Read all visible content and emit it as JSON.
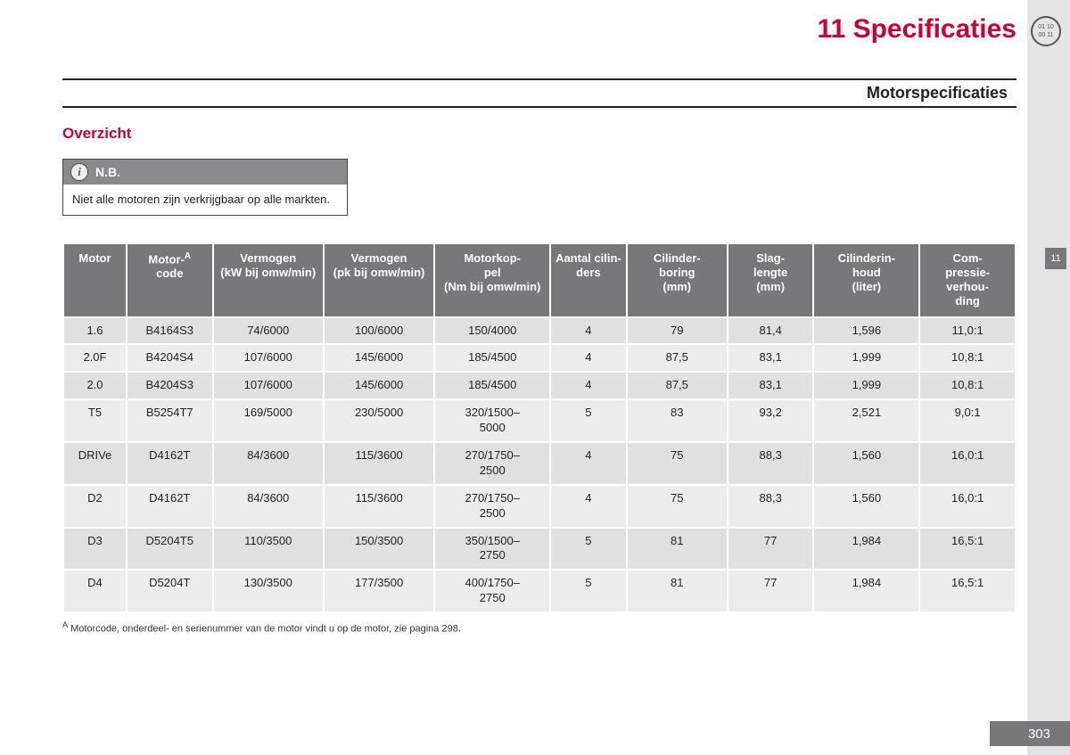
{
  "header": {
    "chapter_title": "11 Specificaties",
    "section_title": "Motorspecificaties",
    "icon_text": "01 10\n00 11",
    "side_tab": "11",
    "page_number": "303"
  },
  "content": {
    "heading": "Overzicht",
    "note": {
      "label": "N.B.",
      "body": "Niet alle motoren zijn verkrijgbaar op alle markten."
    },
    "footnote": "Motorcode, onderdeel- en serienummer van de motor vindt u op de motor, zie pagina 298.",
    "footnote_marker": "A"
  },
  "table": {
    "columns": [
      "Motor",
      "Motor-code",
      "Vermogen (kW bij omw/min)",
      "Vermogen (pk bij omw/min)",
      "Motorkop-pel (Nm bij omw/min)",
      "Aantal cilin-ders",
      "Cilinder-boring (mm)",
      "Slag-lengte (mm)",
      "Cilinderin-houd (liter)",
      "Com-pressie-verhou-ding"
    ],
    "column_sup": [
      null,
      "A",
      null,
      null,
      null,
      null,
      null,
      null,
      null,
      null
    ],
    "rows": [
      [
        "1.6",
        "B4164S3",
        "74/6000",
        "100/6000",
        "150/4000",
        "4",
        "79",
        "81,4",
        "1,596",
        "11,0:1"
      ],
      [
        "2.0F",
        "B4204S4",
        "107/6000",
        "145/6000",
        "185/4500",
        "4",
        "87,5",
        "83,1",
        "1,999",
        "10,8:1"
      ],
      [
        "2.0",
        "B4204S3",
        "107/6000",
        "145/6000",
        "185/4500",
        "4",
        "87,5",
        "83,1",
        "1,999",
        "10,8:1"
      ],
      [
        "T5",
        "B5254T7",
        "169/5000",
        "230/5000",
        "320/1500–5000",
        "5",
        "83",
        "93,2",
        "2,521",
        "9,0:1"
      ],
      [
        "DRIVe",
        "D4162T",
        "84/3600",
        "115/3600",
        "270/1750–2500",
        "4",
        "75",
        "88,3",
        "1,560",
        "16,0:1"
      ],
      [
        "D2",
        "D4162T",
        "84/3600",
        "115/3600",
        "270/1750–2500",
        "4",
        "75",
        "88,3",
        "1,560",
        "16,0:1"
      ],
      [
        "D3",
        "D5204T5",
        "110/3500",
        "150/3500",
        "350/1500–2750",
        "5",
        "81",
        "77",
        "1,984",
        "16,5:1"
      ],
      [
        "D4",
        "D5204T",
        "130/3500",
        "177/3500",
        "400/1750–2750",
        "5",
        "81",
        "77",
        "1,984",
        "16,5:1"
      ]
    ]
  },
  "styling": {
    "accent_color": "#c9003a",
    "header_bg": "#78787a",
    "row_odd_bg": "#e0e0e1",
    "row_even_bg": "#ececec",
    "margin_bg": "#e4e4e5",
    "page_bg": "#ffffff",
    "text_color": "#222222",
    "column_widths_pct": [
      6.2,
      8.5,
      11,
      11,
      11.5,
      7.5,
      10,
      8.5,
      10.5,
      9.5
    ],
    "header_font_size_pt": 10,
    "body_font_size_pt": 10,
    "chapter_title_font_size_pt": 22
  }
}
